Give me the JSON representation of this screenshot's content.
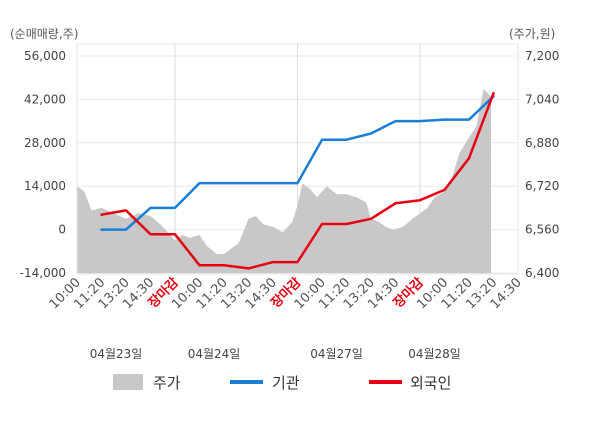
{
  "chart_data": {
    "type": "line",
    "left_axis_title": "(순매매량,주)",
    "right_axis_title": "(주가,원)",
    "left_ticks": [
      "56,000",
      "42,000",
      "28,000",
      "14,000",
      "0",
      "-14,000"
    ],
    "right_ticks": [
      "7,200",
      "7,040",
      "6,880",
      "6,720",
      "6,560",
      "6,400"
    ],
    "left_ylim": [
      -14000,
      56000
    ],
    "right_ylim": [
      6400,
      7200
    ],
    "x_tick_labels": [
      {
        "text": "10:00",
        "style": "normal"
      },
      {
        "text": "11:20",
        "style": "normal"
      },
      {
        "text": "13:20",
        "style": "normal"
      },
      {
        "text": "14:30",
        "style": "normal"
      },
      {
        "text": "장마감",
        "style": "close"
      },
      {
        "text": "10:00",
        "style": "normal"
      },
      {
        "text": "11:20",
        "style": "normal"
      },
      {
        "text": "13:20",
        "style": "normal"
      },
      {
        "text": "14:30",
        "style": "normal"
      },
      {
        "text": "장마감",
        "style": "close"
      },
      {
        "text": "10:00",
        "style": "normal"
      },
      {
        "text": "11:20",
        "style": "normal"
      },
      {
        "text": "13:20",
        "style": "normal"
      },
      {
        "text": "14:30",
        "style": "normal"
      },
      {
        "text": "장마감",
        "style": "close"
      },
      {
        "text": "10:00",
        "style": "normal"
      },
      {
        "text": "11:20",
        "style": "normal"
      },
      {
        "text": "13:20",
        "style": "normal"
      },
      {
        "text": "14:30",
        "style": "normal"
      }
    ],
    "dates": [
      "04월23일",
      "04월24일",
      "04월27일",
      "04월28일"
    ],
    "grid": true,
    "legend_position": "bottom",
    "series": [
      {
        "name": "주가",
        "kind": "area",
        "axis": "right",
        "color": "#c8c8c8",
        "x": [
          0,
          0.3,
          0.6,
          1,
          1.5,
          2,
          2.5,
          3,
          3.4,
          3.7,
          4,
          4.3,
          4.6,
          5,
          5.3,
          5.7,
          6,
          6.3,
          6.6,
          7,
          7.3,
          7.6,
          8,
          8.4,
          8.8,
          9,
          9.2,
          9.5,
          9.8,
          10.2,
          10.6,
          11,
          11.4,
          11.8,
          12,
          12.3,
          12.6,
          12.9,
          13.3,
          13.7,
          14,
          14.3,
          14.6,
          15,
          15.3,
          15.6,
          16,
          16.3,
          16.6,
          16.9
        ],
        "values": [
          6720,
          6700,
          6630,
          6640,
          6620,
          6600,
          6620,
          6610,
          6580,
          6550,
          6520,
          6540,
          6530,
          6540,
          6500,
          6470,
          6470,
          6490,
          6510,
          6600,
          6610,
          6580,
          6570,
          6550,
          6590,
          6650,
          6730,
          6710,
          6680,
          6720,
          6690,
          6690,
          6680,
          6660,
          6600,
          6590,
          6570,
          6560,
          6570,
          6600,
          6620,
          6640,
          6680,
          6700,
          6750,
          6840,
          6900,
          6940,
          7080,
          7050
        ]
      },
      {
        "name": "기관",
        "kind": "line",
        "axis": "left",
        "color": "#1a7fd4",
        "x": [
          1,
          2,
          3,
          4,
          5,
          6,
          7,
          8,
          9,
          10,
          11,
          12,
          13,
          14,
          15,
          16,
          17
        ],
        "values": [
          0,
          0,
          7000,
          7000,
          15000,
          15000,
          15000,
          15000,
          15000,
          29000,
          29000,
          31000,
          35000,
          35000,
          35500,
          35500,
          43000
        ]
      },
      {
        "name": "외국인",
        "kind": "line",
        "axis": "left",
        "color": "#e60012",
        "x": [
          1,
          2,
          3,
          4,
          5,
          6,
          7,
          8,
          9,
          10,
          11,
          12,
          13,
          14,
          15,
          16,
          17
        ],
        "values": [
          4800,
          6200,
          -1500,
          -1500,
          -11500,
          -11500,
          -12500,
          -10500,
          -10500,
          1800,
          1800,
          3500,
          8500,
          9500,
          12800,
          23000,
          44000
        ]
      }
    ]
  }
}
